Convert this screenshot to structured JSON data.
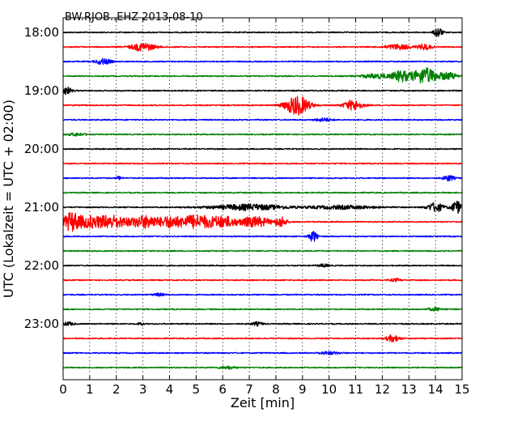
{
  "chart_data": {
    "type": "line",
    "title": "BW.RJOB..EHZ 2013-08-10",
    "xlabel": "Zeit  [min]",
    "ylabel": "UTC (Lokalzeit = UTC + 02:00)",
    "xlim": [
      0,
      15
    ],
    "x_ticks": [
      "0",
      "1",
      "2",
      "3",
      "4",
      "5",
      "6",
      "7",
      "8",
      "9",
      "10",
      "11",
      "12",
      "13",
      "14",
      "15"
    ],
    "y_tick_labels": [
      "18:00",
      "19:00",
      "20:00",
      "21:00",
      "22:00",
      "23:00"
    ],
    "grid": "vertical dotted",
    "trace_colors": [
      "#000000",
      "#ff0000",
      "#0000ff",
      "#008000"
    ],
    "traces": [
      {
        "start": "18:00",
        "bursts": [
          {
            "t": 14.1,
            "amp": 0.45,
            "w": 0.15
          }
        ]
      },
      {
        "start": "18:15",
        "bursts": [
          {
            "t": 3.0,
            "amp": 0.35,
            "w": 0.45
          },
          {
            "t": 12.6,
            "amp": 0.22,
            "w": 0.5
          },
          {
            "t": 13.6,
            "amp": 0.25,
            "w": 0.25
          }
        ]
      },
      {
        "start": "18:30",
        "bursts": [
          {
            "t": 1.5,
            "amp": 0.25,
            "w": 0.3
          }
        ]
      },
      {
        "start": "18:45",
        "bursts": [
          {
            "t": 11.8,
            "amp": 0.2,
            "w": 0.6
          },
          {
            "t": 12.7,
            "amp": 0.45,
            "w": 0.3
          },
          {
            "t": 13.6,
            "amp": 0.7,
            "w": 0.5
          },
          {
            "t": 14.5,
            "amp": 0.3,
            "w": 0.3
          }
        ]
      },
      {
        "start": "19:00",
        "bursts": [
          {
            "t": 0.1,
            "amp": 0.35,
            "w": 0.2
          }
        ]
      },
      {
        "start": "19:15",
        "bursts": [
          {
            "t": 8.8,
            "amp": 0.85,
            "w": 0.45
          },
          {
            "t": 10.9,
            "amp": 0.45,
            "w": 0.35
          }
        ]
      },
      {
        "start": "19:30",
        "bursts": [
          {
            "t": 9.8,
            "amp": 0.15,
            "w": 0.3
          }
        ]
      },
      {
        "start": "19:45",
        "bursts": [
          {
            "t": 0.5,
            "amp": 0.12,
            "w": 0.3
          }
        ]
      },
      {
        "start": "20:00",
        "bursts": []
      },
      {
        "start": "20:15",
        "bursts": []
      },
      {
        "start": "20:30",
        "bursts": [
          {
            "t": 2.1,
            "amp": 0.15,
            "w": 0.1
          },
          {
            "t": 14.5,
            "amp": 0.25,
            "w": 0.2
          }
        ]
      },
      {
        "start": "20:45",
        "bursts": []
      },
      {
        "start": "21:00",
        "bursts": [
          {
            "t": 7.0,
            "amp": 0.25,
            "w": 1.4
          },
          {
            "t": 10.5,
            "amp": 0.15,
            "w": 1.2
          },
          {
            "t": 14.0,
            "amp": 0.4,
            "w": 0.3
          },
          {
            "t": 14.8,
            "amp": 0.55,
            "w": 0.2
          }
        ]
      },
      {
        "start": "21:15",
        "bursts": [
          {
            "t": 0.3,
            "amp": 0.75,
            "w": 0.3
          },
          {
            "t": 0.9,
            "amp": 0.45,
            "w": 0.5
          },
          {
            "t": 1.8,
            "amp": 0.55,
            "w": 0.6
          },
          {
            "t": 3.1,
            "amp": 0.55,
            "w": 0.6
          },
          {
            "t": 4.0,
            "amp": 0.3,
            "w": 0.3
          },
          {
            "t": 5.0,
            "amp": 0.6,
            "w": 0.9
          },
          {
            "t": 6.1,
            "amp": 0.35,
            "w": 0.4
          },
          {
            "t": 7.2,
            "amp": 0.45,
            "w": 0.6
          },
          {
            "t": 8.2,
            "amp": 0.45,
            "w": 0.2
          }
        ]
      },
      {
        "start": "21:30",
        "bursts": [
          {
            "t": 9.4,
            "amp": 0.5,
            "w": 0.15
          }
        ]
      },
      {
        "start": "21:45",
        "bursts": []
      },
      {
        "start": "22:00",
        "bursts": [
          {
            "t": 9.8,
            "amp": 0.12,
            "w": 0.2
          }
        ]
      },
      {
        "start": "22:15",
        "bursts": [
          {
            "t": 12.5,
            "amp": 0.12,
            "w": 0.2
          }
        ]
      },
      {
        "start": "22:30",
        "bursts": [
          {
            "t": 3.6,
            "amp": 0.12,
            "w": 0.2
          }
        ]
      },
      {
        "start": "22:45",
        "bursts": [
          {
            "t": 14.0,
            "amp": 0.12,
            "w": 0.3
          }
        ]
      },
      {
        "start": "23:00",
        "bursts": [
          {
            "t": 0.2,
            "amp": 0.15,
            "w": 0.2
          },
          {
            "t": 2.9,
            "amp": 0.15,
            "w": 0.1
          },
          {
            "t": 7.3,
            "amp": 0.15,
            "w": 0.2
          }
        ]
      },
      {
        "start": "23:15",
        "bursts": [
          {
            "t": 12.4,
            "amp": 0.3,
            "w": 0.25
          }
        ]
      },
      {
        "start": "23:30",
        "bursts": [
          {
            "t": 10.0,
            "amp": 0.12,
            "w": 0.4
          }
        ]
      },
      {
        "start": "23:45",
        "bursts": [
          {
            "t": 6.2,
            "amp": 0.12,
            "w": 0.3
          }
        ]
      }
    ]
  }
}
